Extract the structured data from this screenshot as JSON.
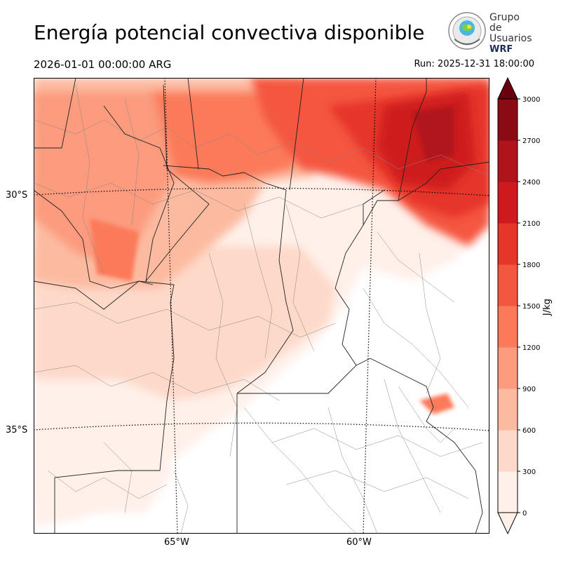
{
  "title": "Energía potencial convectiva disponible",
  "valid_time": "2026-01-01 00:00:00 ARG",
  "run_time": "Run: 2025-12-31 18:00:00",
  "logo": {
    "line1": "Grupo de",
    "line2": "Usuarios",
    "line3": "WRF"
  },
  "axes": {
    "lat_labels": [
      "30°S",
      "35°S"
    ],
    "lon_labels": [
      "65°W",
      "60°W"
    ]
  },
  "colorbar": {
    "label": "J/kg",
    "ticks": [
      "0",
      "300",
      "600",
      "900",
      "1200",
      "1500",
      "1800",
      "2100",
      "2400",
      "2700",
      "3000"
    ],
    "colors": [
      "#fff0ea",
      "#fdd9c9",
      "#fcbba1",
      "#fc9b7e",
      "#fb7a5a",
      "#f4573f",
      "#e6362a",
      "#ce1a1e",
      "#b0141a",
      "#8a0b14",
      "#6b010e"
    ]
  },
  "colors": {
    "high_cape": "#ce1a1e",
    "mid_cape": "#fb7a5a",
    "low_cape": "#fdd9c9"
  }
}
